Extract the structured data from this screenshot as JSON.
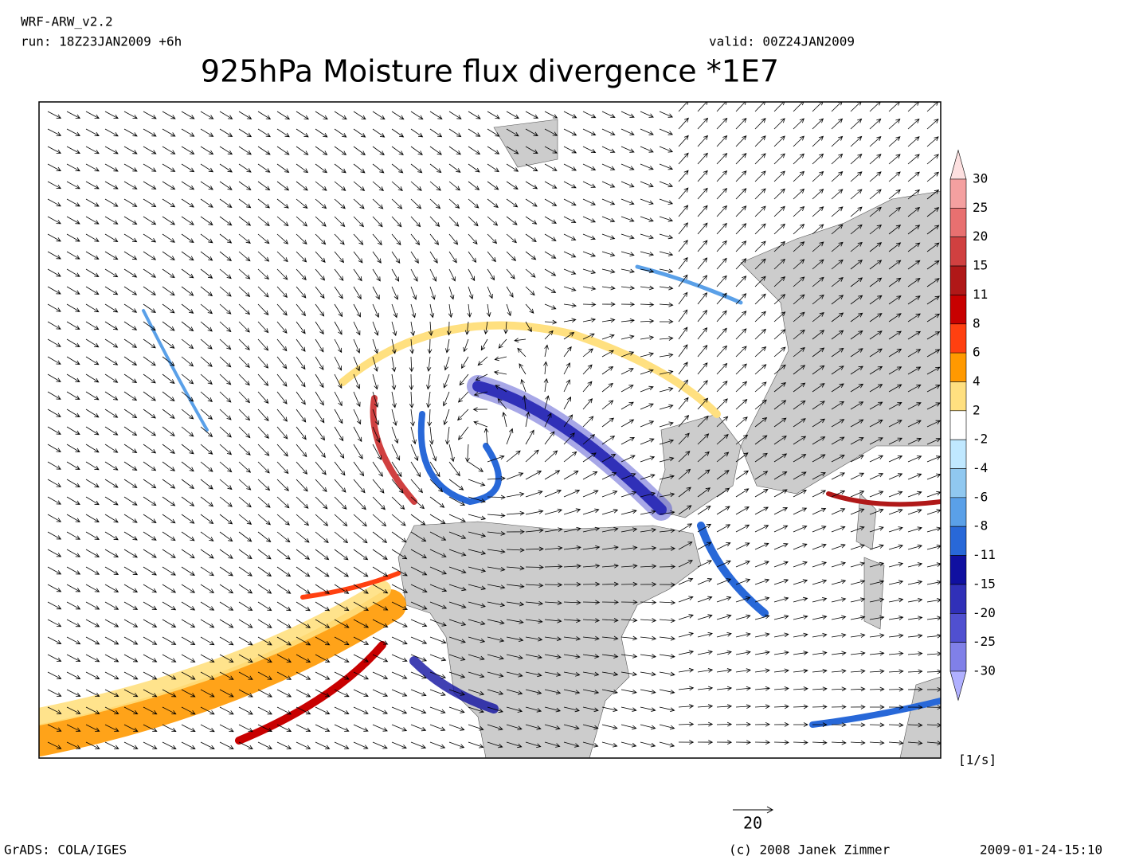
{
  "header": {
    "model": "WRF-ARW_v2.2",
    "run": "run: 18Z23JAN2009 +6h",
    "valid": "valid: 00Z24JAN2009",
    "title": "925hPa Moisture flux divergence *1E7"
  },
  "colorbar": {
    "labels": [
      "30",
      "25",
      "20",
      "15",
      "11",
      "8",
      "6",
      "4",
      "2",
      "-2",
      "-4",
      "-6",
      "-8",
      "-11",
      "-15",
      "-20",
      "-25",
      "-30"
    ],
    "colors": [
      "#fde0e0",
      "#f4a0a0",
      "#e87070",
      "#d04040",
      "#b01818",
      "#c80000",
      "#ff4010",
      "#ff9900",
      "#ffe080",
      "#ffffff",
      "#c0e8ff",
      "#90c8f0",
      "#5aa0e8",
      "#2868d8",
      "#1010a0",
      "#3030b8",
      "#5050d0",
      "#8080e8",
      "#b0b0ff"
    ],
    "unit": "[1/s]"
  },
  "reference_vector": "20",
  "footer": {
    "software": "GrADS: COLA/IGES",
    "copyright": "(c) 2008 Janek Zimmer",
    "timestamp": "2009-01-24-15:10"
  }
}
